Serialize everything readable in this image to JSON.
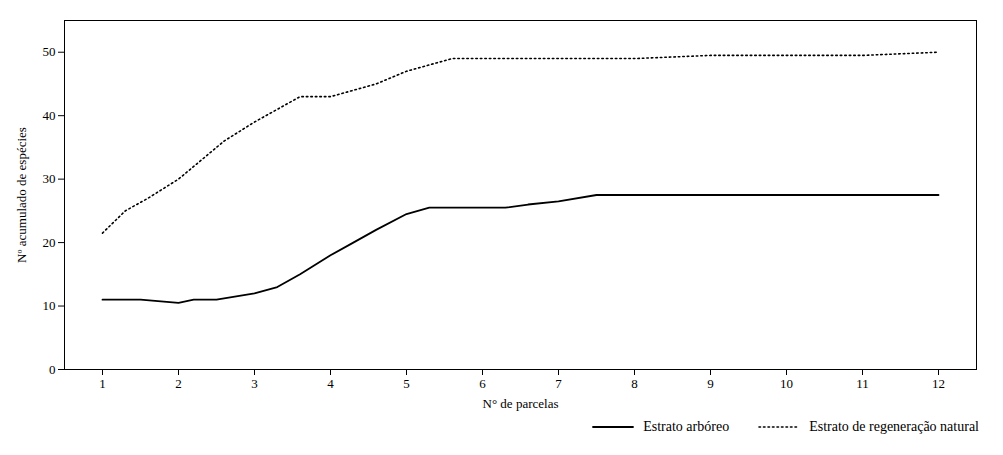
{
  "chart_data": {
    "type": "line",
    "xlabel": "N° de parcelas",
    "ylabel": "Nº acumulado de espécies",
    "series": [
      {
        "name": "Estrato arbóreo",
        "color": "#000000",
        "line_style": "solid",
        "x": [
          1,
          1.5,
          2,
          2.2,
          2.5,
          3,
          3.3,
          3.6,
          4,
          4.3,
          4.6,
          5,
          5.3,
          5.6,
          6,
          6.3,
          6.6,
          7,
          7.5,
          8,
          9,
          10,
          11,
          12
        ],
        "values": [
          11,
          11,
          10.5,
          11,
          11,
          12,
          13,
          15,
          18,
          20,
          22,
          24.5,
          25.5,
          25.5,
          25.5,
          25.5,
          26,
          26.5,
          27.5,
          27.5,
          27.5,
          27.5,
          27.5,
          27.5
        ]
      },
      {
        "name": "Estrato de regeneração natural",
        "color": "#000000",
        "line_style": "dotted",
        "x": [
          1,
          1.3,
          1.6,
          2,
          2.3,
          2.6,
          3,
          3.3,
          3.6,
          4,
          4.3,
          4.6,
          5,
          5.3,
          5.6,
          6,
          6.3,
          6.6,
          7,
          7.5,
          8,
          9,
          10,
          11,
          12
        ],
        "values": [
          21.5,
          25,
          27,
          30,
          33,
          36,
          39,
          41,
          43,
          43,
          44,
          45,
          47,
          48,
          49,
          49,
          49,
          49,
          49,
          49,
          49,
          49.5,
          49.5,
          49.5,
          50
        ]
      }
    ],
    "xlim": [
      0.5,
      12.5
    ],
    "ylim": [
      0,
      55
    ],
    "xticks": [
      1,
      2,
      3,
      4,
      5,
      6,
      7,
      8,
      9,
      10,
      11,
      12
    ],
    "yticks": [
      0,
      10,
      20,
      30,
      40,
      50
    ],
    "grid": false,
    "legend": "right"
  }
}
